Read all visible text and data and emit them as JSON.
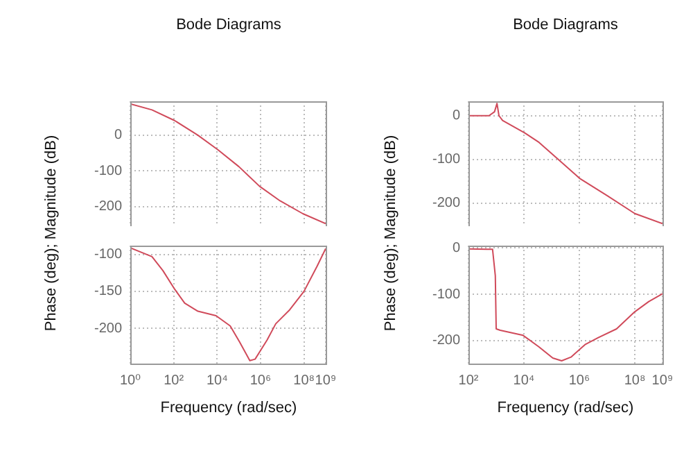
{
  "chart_data": [
    {
      "type": "line",
      "title": "Bode Diagrams",
      "ylabel": "Phase (deg); Magnitude (dB)",
      "log": "x",
      "grid": true,
      "tick_labels": "y",
      "xlim": [
        1,
        1000000000
      ],
      "ylim": [
        -255,
        95
      ],
      "xticks": [
        {
          "value": 1,
          "label": null
        },
        {
          "value": 100,
          "label": null
        },
        {
          "value": 10000,
          "label": null
        },
        {
          "value": 1000000,
          "label": null
        },
        {
          "value": 100000000,
          "label": null
        },
        {
          "value": 1000000000,
          "label": null
        }
      ],
      "yticks": [
        -200,
        -100,
        0
      ],
      "series": [
        {
          "color": "#d04a5a",
          "x": [
            1,
            10,
            110,
            1300,
            11000,
            100000,
            890000,
            7900000,
            89000000,
            1000000000
          ],
          "values": [
            88,
            71,
            41,
            0,
            -41,
            -88,
            -143,
            -184,
            -220,
            -248
          ]
        }
      ]
    },
    {
      "type": "line",
      "xlabel": "Frequency (rad/sec)",
      "log": "x",
      "grid": true,
      "xlim": [
        1,
        1000000000
      ],
      "ylim": [
        -248,
        -88
      ],
      "xticks": [
        {
          "value": 1,
          "label": "10⁰"
        },
        {
          "value": 100,
          "label": "10²"
        },
        {
          "value": 10000,
          "label": "10⁴"
        },
        {
          "value": 1000000,
          "label": "10⁶"
        },
        {
          "value": 100000000,
          "label": "10⁸"
        },
        {
          "value": 1000000000,
          "label": "10⁹"
        }
      ],
      "yticks": [
        -200,
        -150,
        -100
      ],
      "series": [
        {
          "color": "#d04a5a",
          "x": [
            1,
            10,
            32,
            110,
            320,
            1300,
            8900,
            40000,
            110000,
            320000,
            560000,
            2000000,
            5000000,
            22000000,
            100000000,
            400000000,
            1000000000
          ],
          "values": [
            -91,
            -103,
            -122,
            -147,
            -166,
            -177,
            -183,
            -197,
            -219,
            -244,
            -242,
            -216,
            -194,
            -175,
            -150,
            -116,
            -92
          ]
        }
      ]
    },
    {
      "type": "line",
      "title": "Bode Diagrams",
      "ylabel": "Phase (deg); Magnitude (dB)",
      "log": "x",
      "grid": true,
      "tick_labels": "y",
      "xlim": [
        100,
        1000000000
      ],
      "ylim": [
        -253,
        33
      ],
      "xticks": [
        {
          "value": 100,
          "label": null
        },
        {
          "value": 10000,
          "label": null
        },
        {
          "value": 1000000,
          "label": null
        },
        {
          "value": 100000000,
          "label": null
        },
        {
          "value": 1000000000,
          "label": null
        }
      ],
      "yticks": [
        -200,
        -100,
        0
      ],
      "series": [
        {
          "color": "#d04a5a",
          "x": [
            100,
            550,
            870,
            1070,
            1260,
            1700,
            10500,
            35000,
            160000,
            1050000,
            10000000,
            100000000,
            1000000000
          ],
          "values": [
            0,
            0,
            9,
            28,
            0,
            -11,
            -39,
            -61,
            -98,
            -144,
            -183,
            -224,
            -247
          ]
        }
      ]
    },
    {
      "type": "line",
      "xlabel": "Frequency (rad/sec)",
      "log": "x",
      "grid": true,
      "xlim": [
        100,
        1000000000
      ],
      "ylim": [
        -250,
        5
      ],
      "xticks": [
        {
          "value": 100,
          "label": "10²"
        },
        {
          "value": 10000,
          "label": "10⁴"
        },
        {
          "value": 1000000,
          "label": "10⁶"
        },
        {
          "value": 100000000,
          "label": "10⁸"
        },
        {
          "value": 1000000000,
          "label": "10⁹"
        }
      ],
      "yticks": [
        -200,
        -100,
        0
      ],
      "series": [
        {
          "color": "#d04a5a",
          "x": [
            100,
            460,
            740,
            930,
            1000,
            1400,
            9300,
            35000,
            110000,
            230000,
            500000,
            1600000,
            4800000,
            22000000,
            100000000,
            320000000,
            1000000000
          ],
          "values": [
            -2,
            -3,
            -3,
            -60,
            -175,
            -178,
            -189,
            -214,
            -238,
            -244,
            -236,
            -209,
            -194,
            -175,
            -138,
            -116,
            -99
          ]
        }
      ]
    }
  ]
}
